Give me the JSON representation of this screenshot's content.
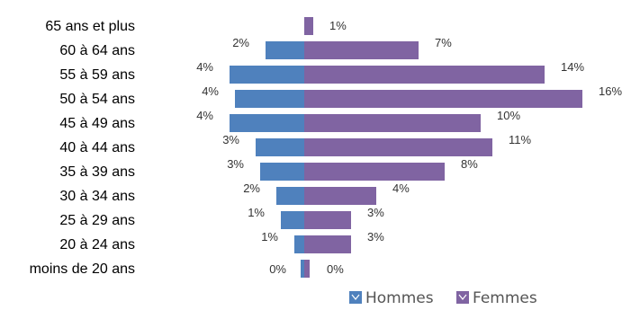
{
  "chart_data": {
    "type": "bar",
    "categories": [
      "65 ans et plus",
      "60 à 64 ans",
      "55 à 59 ans",
      "50 à 54 ans",
      "45 à 49 ans",
      "40 à 44 ans",
      "35 à 39 ans",
      "30 à 34 ans",
      "25 à 29 ans",
      "20 à 24 ans",
      "moins de 20 ans"
    ],
    "series": [
      {
        "name": "Hommes",
        "color": "#4F81BD",
        "values": [
          0,
          2,
          4,
          4,
          4,
          3,
          3,
          2,
          1,
          1,
          0
        ],
        "labels": [
          "",
          "2%",
          "4%",
          "4%",
          "4%",
          "3%",
          "3%",
          "2%",
          "1%",
          "1%",
          "0%"
        ]
      },
      {
        "name": "Femmes",
        "color": "#8064A2",
        "values": [
          1,
          7,
          14,
          16,
          10,
          11,
          8,
          4,
          3,
          3,
          0
        ],
        "labels": [
          "1%",
          "7%",
          "14%",
          "16%",
          "10%",
          "11%",
          "8%",
          "4%",
          "3%",
          "3%",
          "0%"
        ]
      }
    ],
    "legend_position": "bottom-right",
    "grid": false
  }
}
